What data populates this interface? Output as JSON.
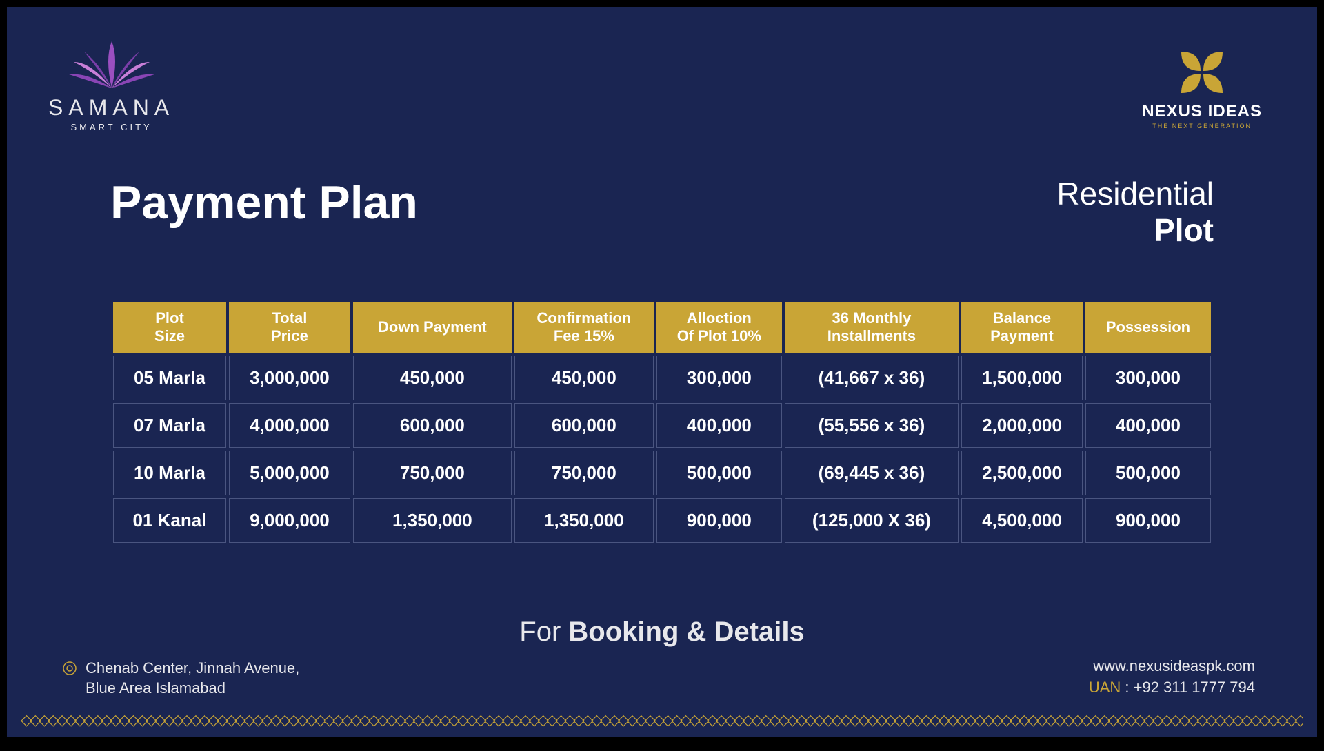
{
  "colors": {
    "background": "#1a2552",
    "accent_gold": "#c9a536",
    "cell_border": "#4a5580",
    "text": "#ffffff",
    "lotus_light": "#c97fd8",
    "lotus_dark": "#7a3ea8"
  },
  "brand_left": {
    "name": "SAMANA",
    "sub": "SMART CITY"
  },
  "brand_right": {
    "name": "NEXUS IDEAS",
    "sub": "THE NEXT GENERATION"
  },
  "title": "Payment Plan",
  "plot_type_line1": "Residential",
  "plot_type_line2": "Plot",
  "table": {
    "columns": [
      "Plot\nSize",
      "Total\nPrice",
      "Down Payment",
      "Confirmation\nFee 15%",
      "Alloction\nOf Plot 10%",
      "36 Monthly\nInstallments",
      "Balance\nPayment",
      "Possession"
    ],
    "rows": [
      [
        "05 Marla",
        "3,000,000",
        "450,000",
        "450,000",
        "300,000",
        "(41,667 x 36)",
        "1,500,000",
        "300,000"
      ],
      [
        "07 Marla",
        "4,000,000",
        "600,000",
        "600,000",
        "400,000",
        "(55,556 x 36)",
        "2,000,000",
        "400,000"
      ],
      [
        "10 Marla",
        "5,000,000",
        "750,000",
        "750,000",
        "500,000",
        "(69,445 x 36)",
        "2,500,000",
        "500,000"
      ],
      [
        "01 Kanal",
        "9,000,000",
        "1,350,000",
        "1,350,000",
        "900,000",
        "(125,000 X 36)",
        "4,500,000",
        "900,000"
      ]
    ]
  },
  "booking_prefix": "For ",
  "booking_bold": "Booking & Details",
  "address_line1": "Chenab Center, Jinnah Avenue,",
  "address_line2": "Blue Area Islamabad",
  "website": "www.nexusideaspk.com",
  "uan_label": "UAN",
  "uan_sep": " : ",
  "uan_number": "+92 311 1777 794"
}
